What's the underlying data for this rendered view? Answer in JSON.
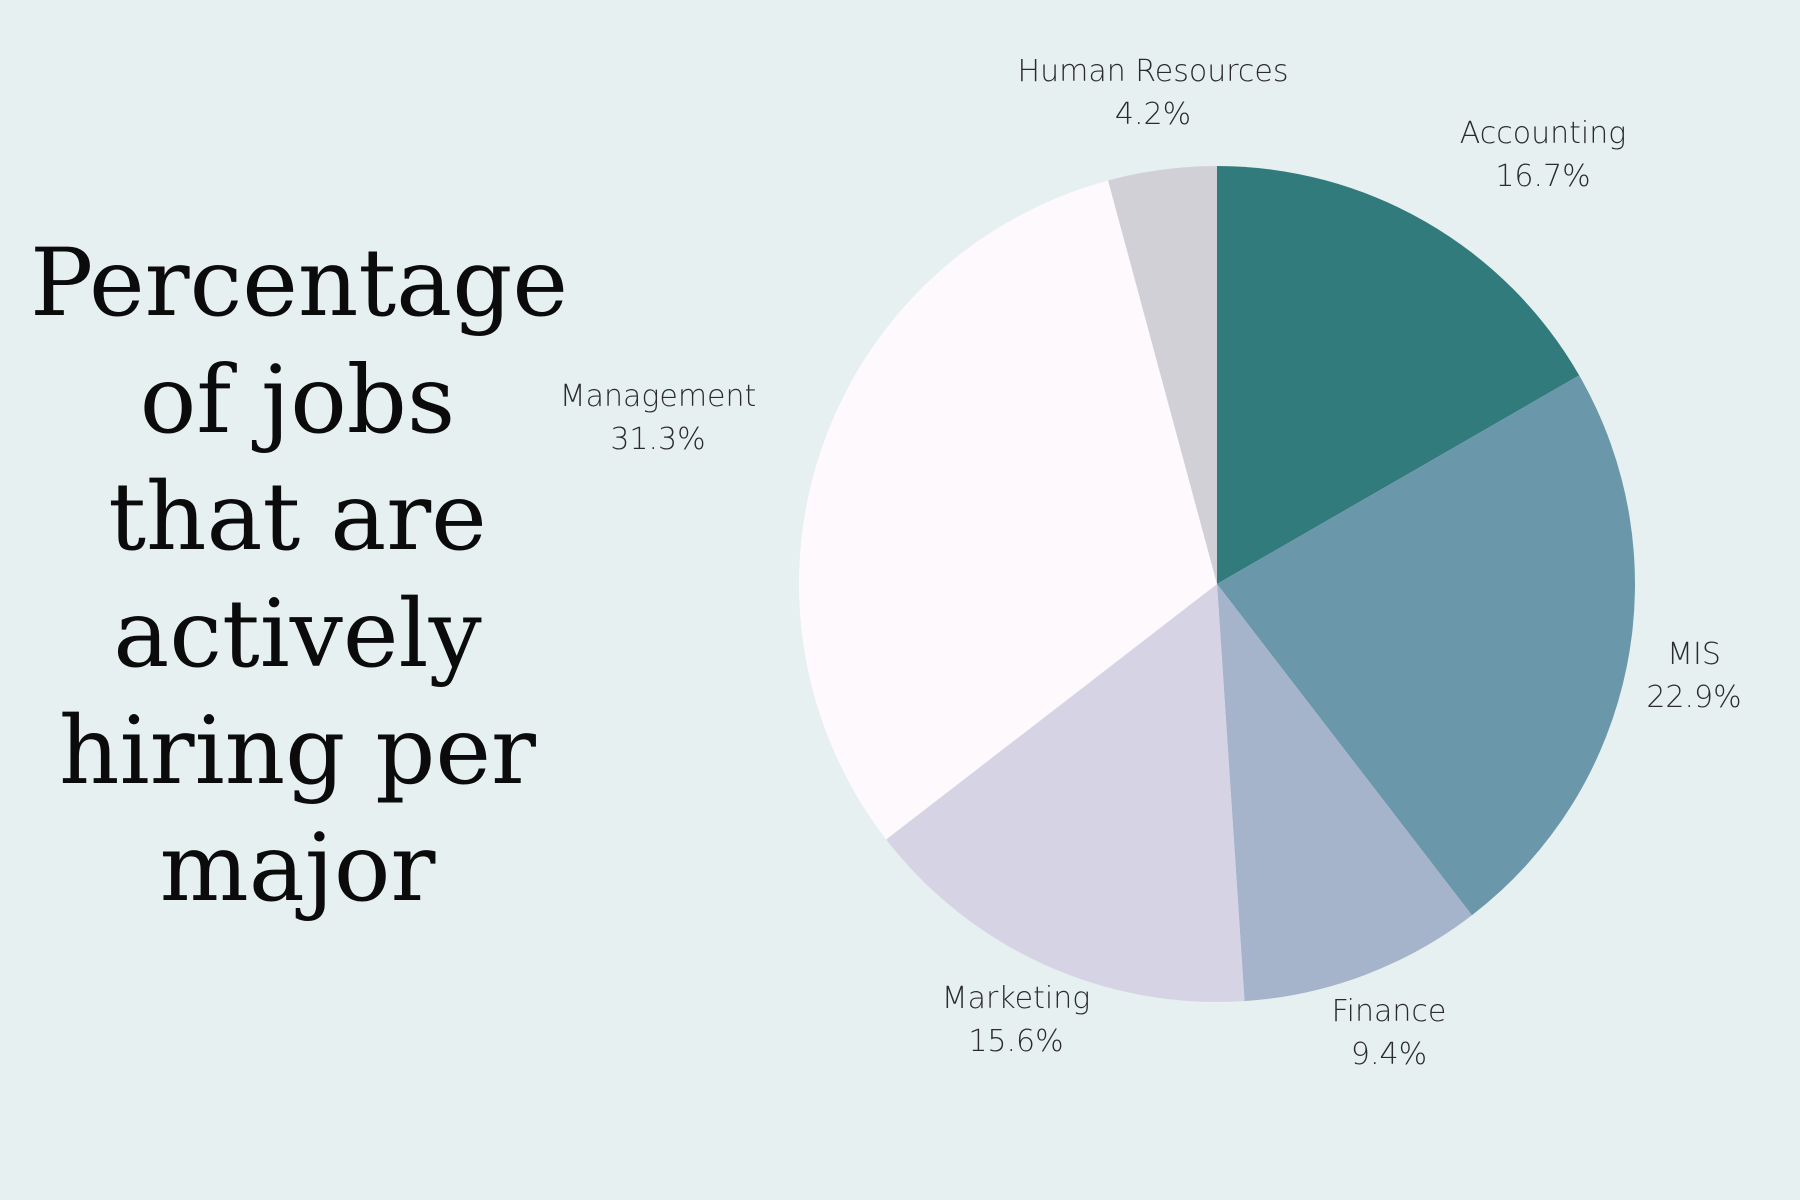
{
  "background_color": "#e6f0f0",
  "title_lines": [
    "Percentage",
    "of jobs",
    "that are",
    "actively",
    "hiring per",
    "major"
  ],
  "chart_data": {
    "type": "pie",
    "title": "Percentage of jobs that are actively hiring per major",
    "start": "12 o'clock",
    "direction": "clockwise",
    "slices": [
      {
        "name": "Accounting",
        "value": 16.7,
        "label": "16.7%",
        "color": "#327b7d"
      },
      {
        "name": "MIS",
        "value": 22.9,
        "label": "22.9%",
        "color": "#6a98aa"
      },
      {
        "name": "Finance",
        "value": 9.4,
        "label": "9.4%",
        "color": "#a6b4cb"
      },
      {
        "name": "Marketing",
        "value": 15.6,
        "label": "15.6%",
        "color": "#d6d4e4"
      },
      {
        "name": "Management",
        "value": 31.3,
        "label": "31.3%",
        "color": "#fdf9fd"
      },
      {
        "name": "Human Resources",
        "value": 4.2,
        "label": "4.2%",
        "color": "#d2d0d7"
      }
    ]
  }
}
